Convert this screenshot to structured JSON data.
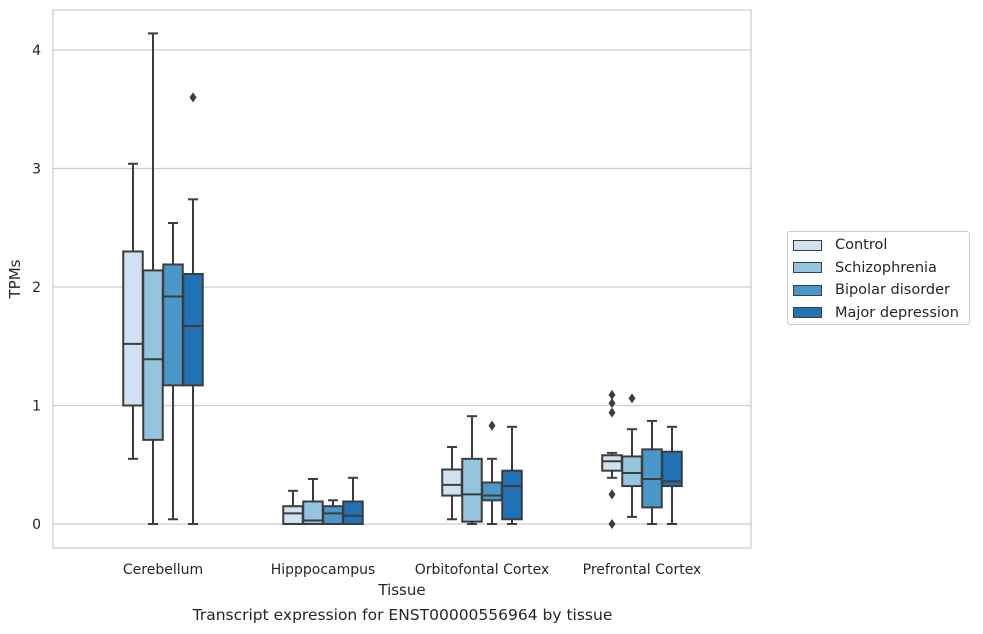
{
  "chart_data": {
    "type": "box",
    "caption": "Transcript expression for ENST00000556964 by tissue",
    "xlabel": "Tissue",
    "ylabel": "TPMs",
    "ylim": [
      -0.2,
      4.35
    ],
    "yticks": [
      0,
      1,
      2,
      3,
      4
    ],
    "grid": "horizontal",
    "legend_position": "right",
    "categories": [
      "Cerebellum",
      "Hipppocampus",
      "Orbitofontal Cortex",
      "Prefrontal Cortex"
    ],
    "series": [
      {
        "name": "Control",
        "color": "#d0e1f2",
        "boxes": [
          {
            "whislo": 0.55,
            "q1": 1.0,
            "med": 1.52,
            "q3": 2.3,
            "whishi": 3.04,
            "fliers": []
          },
          {
            "whislo": 0.0,
            "q1": 0.0,
            "med": 0.09,
            "q3": 0.15,
            "whishi": 0.28,
            "fliers": []
          },
          {
            "whislo": 0.04,
            "q1": 0.24,
            "med": 0.33,
            "q3": 0.46,
            "whishi": 0.65,
            "fliers": []
          },
          {
            "whislo": 0.39,
            "q1": 0.45,
            "med": 0.53,
            "q3": 0.58,
            "whishi": 0.6,
            "fliers": [
              0.0,
              0.25,
              0.94,
              1.02,
              1.09
            ]
          }
        ]
      },
      {
        "name": "Schizophrenia",
        "color": "#94c4df",
        "boxes": [
          {
            "whislo": 0.0,
            "q1": 0.71,
            "med": 1.39,
            "q3": 2.14,
            "whishi": 4.14,
            "fliers": []
          },
          {
            "whislo": 0.0,
            "q1": 0.0,
            "med": 0.03,
            "q3": 0.19,
            "whishi": 0.38,
            "fliers": []
          },
          {
            "whislo": 0.0,
            "q1": 0.02,
            "med": 0.25,
            "q3": 0.55,
            "whishi": 0.91,
            "fliers": []
          },
          {
            "whislo": 0.06,
            "q1": 0.32,
            "med": 0.43,
            "q3": 0.57,
            "whishi": 0.8,
            "fliers": [
              1.06
            ]
          }
        ]
      },
      {
        "name": "Bipolar disorder",
        "color": "#4a98c9",
        "boxes": [
          {
            "whislo": 0.04,
            "q1": 1.17,
            "med": 1.92,
            "q3": 2.19,
            "whishi": 2.54,
            "fliers": []
          },
          {
            "whislo": 0.0,
            "q1": 0.0,
            "med": 0.09,
            "q3": 0.15,
            "whishi": 0.2,
            "fliers": []
          },
          {
            "whislo": 0.0,
            "q1": 0.2,
            "med": 0.24,
            "q3": 0.35,
            "whishi": 0.55,
            "fliers": [
              0.83
            ]
          },
          {
            "whislo": 0.0,
            "q1": 0.14,
            "med": 0.38,
            "q3": 0.63,
            "whishi": 0.87,
            "fliers": []
          }
        ]
      },
      {
        "name": "Major depression",
        "color": "#2171b5",
        "boxes": [
          {
            "whislo": 0.0,
            "q1": 1.17,
            "med": 1.67,
            "q3": 2.11,
            "whishi": 2.74,
            "fliers": [
              3.6
            ]
          },
          {
            "whislo": 0.0,
            "q1": 0.0,
            "med": 0.07,
            "q3": 0.19,
            "whishi": 0.39,
            "fliers": []
          },
          {
            "whislo": 0.0,
            "q1": 0.04,
            "med": 0.32,
            "q3": 0.45,
            "whishi": 0.82,
            "fliers": []
          },
          {
            "whislo": 0.0,
            "q1": 0.32,
            "med": 0.36,
            "q3": 0.61,
            "whishi": 0.82,
            "fliers": []
          }
        ]
      }
    ]
  }
}
